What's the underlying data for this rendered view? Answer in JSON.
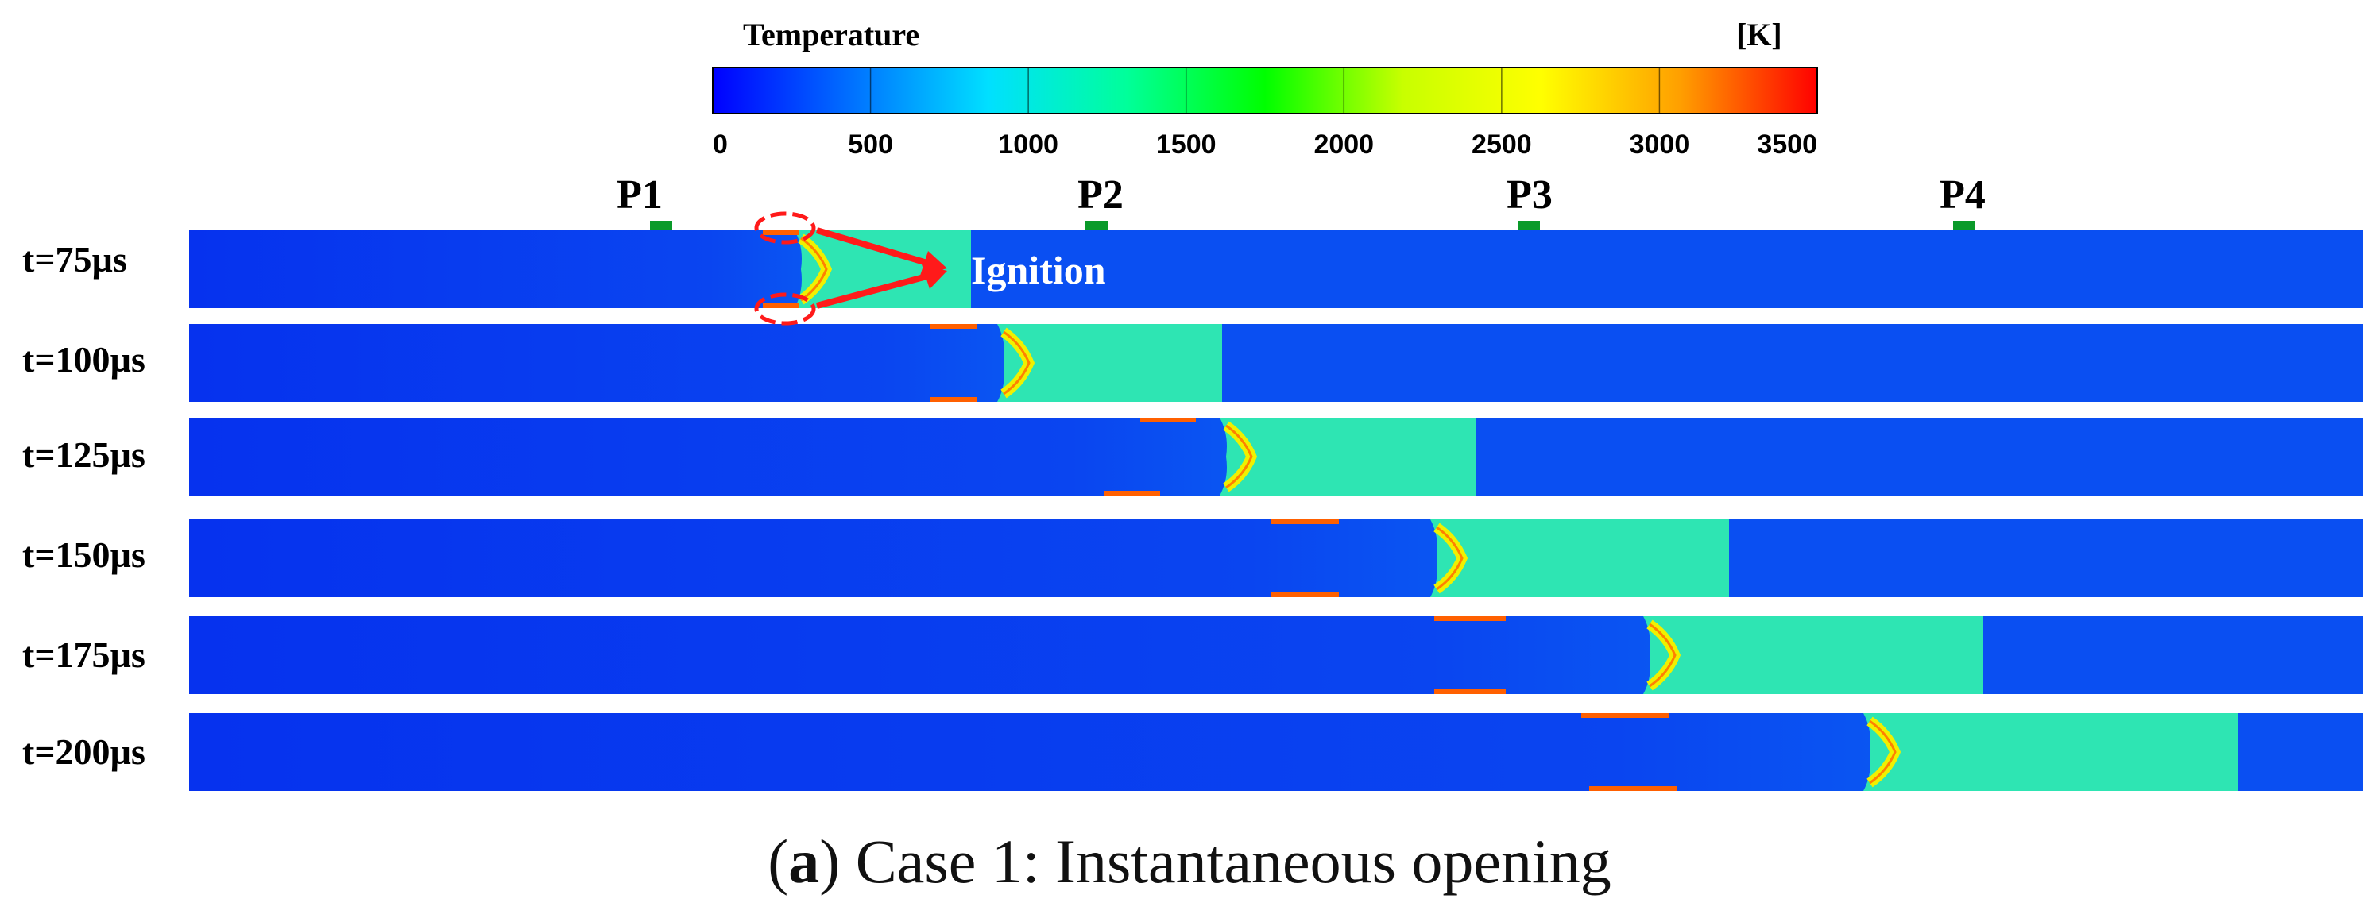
{
  "colorbar": {
    "title": "Temperature",
    "unit": "[K]",
    "ticks": [
      "0",
      "500",
      "1000",
      "1500",
      "2000",
      "2500",
      "3000",
      "3500"
    ],
    "min": 0,
    "max": 3500,
    "stops": [
      "#0000ff",
      "#0070ff",
      "#00e0ff",
      "#00ff9a",
      "#00ff00",
      "#c8ff00",
      "#ffff00",
      "#ffa000",
      "#ff0000"
    ]
  },
  "probes": [
    "P1",
    "P2",
    "P3",
    "P4"
  ],
  "annotation": {
    "text": "Ignition"
  },
  "snapshots": [
    {
      "time": "t=75µs"
    },
    {
      "time": "t=100µs"
    },
    {
      "time": "t=125µs"
    },
    {
      "time": "t=150µs"
    },
    {
      "time": "t=175µs"
    },
    {
      "time": "t=200µs"
    }
  ],
  "colors": {
    "unburned": "#0a4ff2",
    "inflow": "#0632ee",
    "burned": "#2ee5b3",
    "flame": "#f0f000",
    "probe": "#0a9a2a",
    "marker": "#ff1a1a"
  },
  "caption": {
    "label": "a",
    "text": "Case 1: Instantaneous opening"
  }
}
